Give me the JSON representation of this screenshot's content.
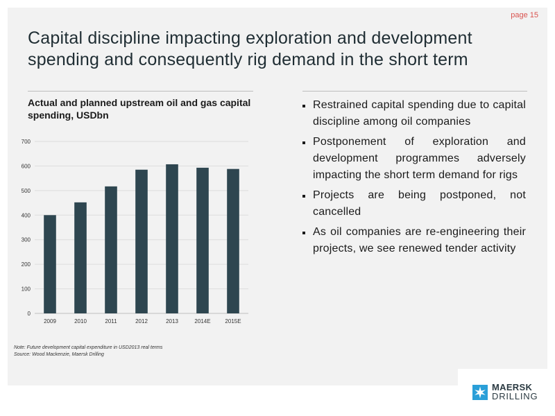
{
  "page": {
    "number": "page 15"
  },
  "title": "Capital discipline impacting exploration and development spending and consequently rig demand in the short term",
  "chart_title": "Actual and planned upstream oil and gas capital spending, USDbn",
  "chart_data": {
    "type": "bar",
    "title": "Actual and planned upstream oil and gas capital spending, USDbn",
    "categories": [
      "2009",
      "2010",
      "2011",
      "2012",
      "2013",
      "2014E",
      "2015E"
    ],
    "values": [
      400,
      452,
      517,
      585,
      607,
      593,
      588
    ],
    "ylim": [
      0,
      700
    ],
    "yticks": [
      0,
      100,
      200,
      300,
      400,
      500,
      600,
      700
    ],
    "grid": true,
    "bar_color": "#2e4650",
    "xlabel": "",
    "ylabel": ""
  },
  "footnotes": {
    "note": "Note: Future development capital expenditure in USD2013 real terms",
    "source": "Source: Wood Mackenzie, Maersk Drilling"
  },
  "bullets": [
    "Restrained capital spending due to capital discipline among oil companies",
    "Postponement of exploration and development programmes adversely impacting the short term demand for rigs",
    "Projects are being postponed, not cancelled",
    "As oil companies are re-engineering their projects, we see renewed tender activity"
  ],
  "logo": {
    "line1": "MAERSK",
    "line2": "DRILLING",
    "icon": "star-icon",
    "color": "#2a9fd8"
  }
}
